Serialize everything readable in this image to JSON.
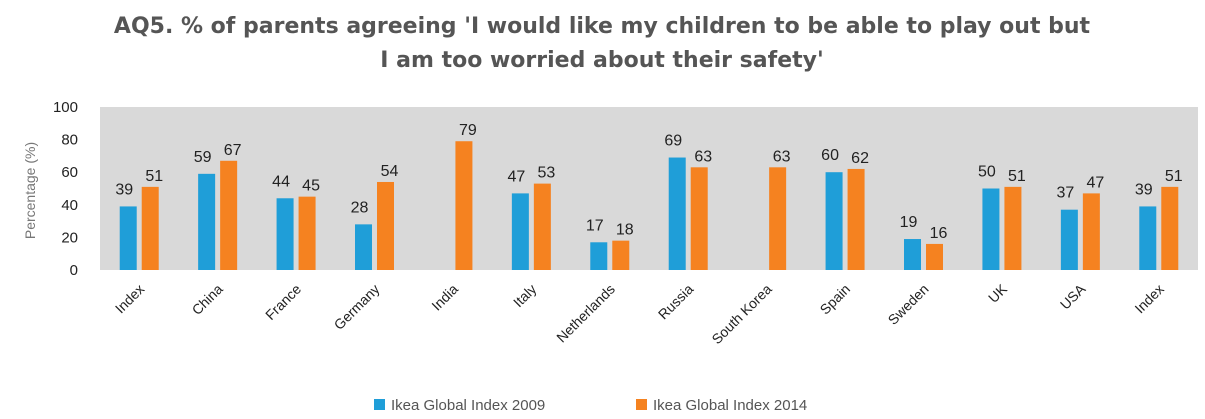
{
  "chart_data": {
    "type": "bar",
    "title_lines": [
      "AQ5. % of parents agreeing 'I would like my children to be able to play out but",
      "I am too worried about their safety'"
    ],
    "ylabel": "Percentage (%)",
    "xlabel": "",
    "ylim": [
      0,
      100
    ],
    "yticks": [
      0,
      20,
      40,
      60,
      80,
      100
    ],
    "grid": false,
    "plot_background": "#d9d9d9",
    "legend_position": "bottom",
    "categories": [
      "Index",
      "China",
      "France",
      "Germany",
      "India",
      "Italy",
      "Netherlands",
      "Russia",
      "South Korea",
      "Spain",
      "Sweden",
      "UK",
      "USA",
      "Index"
    ],
    "series": [
      {
        "name": "Ikea Global Index 2009",
        "color": "#1f9ed8",
        "values": [
          39,
          59,
          44,
          28,
          null,
          47,
          17,
          69,
          null,
          60,
          19,
          50,
          37,
          39
        ]
      },
      {
        "name": "Ikea Global Index 2014",
        "color": "#f58220",
        "values": [
          51,
          67,
          45,
          54,
          79,
          53,
          18,
          63,
          63,
          62,
          16,
          51,
          47,
          51
        ]
      }
    ]
  }
}
